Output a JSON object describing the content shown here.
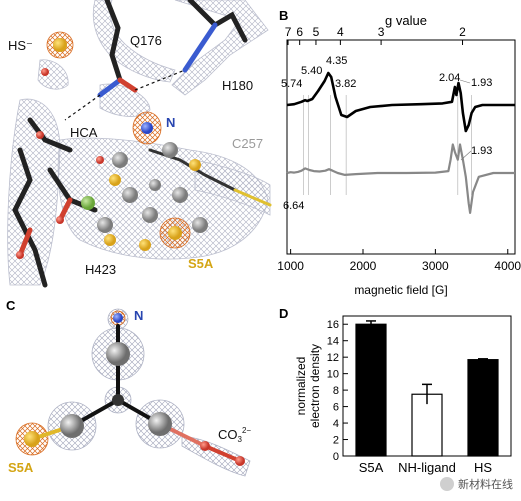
{
  "panels": {
    "a": {
      "letter": "A",
      "labels": {
        "hs": "HS⁻",
        "q176": "Q176",
        "h180": "H180",
        "n": "N",
        "hca": "HCA",
        "c257": "C257",
        "h423": "H423",
        "s5a": "S5A"
      }
    },
    "b": {
      "letter": "B",
      "top_axis_label": "g value",
      "peak_labels": {
        "g574": "5.74",
        "g540": "5.40",
        "g435": "4.35",
        "g382": "3.82",
        "g204": "2.04",
        "g193a": "1.93",
        "g664": "6.64",
        "g193b": "1.93"
      }
    },
    "c": {
      "letter": "C",
      "labels": {
        "n": "N",
        "co3": "CO",
        "co3_sub": "3",
        "co3_sup": "2−",
        "s5a": "S5A"
      }
    },
    "d": {
      "letter": "D"
    }
  },
  "chart_data": [
    {
      "type": "line",
      "panel": "B",
      "xlabel": "magnetic field [G]",
      "x_ticks": [
        1000,
        2000,
        3000,
        4000
      ],
      "xlim": [
        950,
        4100
      ],
      "top_axis": {
        "label": "g value",
        "ticks": [
          "7",
          "6",
          "5",
          "4",
          "3",
          "2"
        ]
      },
      "series": [
        {
          "color": "#000000",
          "x": [
            950,
            1050,
            1150,
            1200,
            1230,
            1300,
            1380,
            1470,
            1520,
            1560,
            1620,
            1700,
            1780,
            1900,
            2100,
            2400,
            2800,
            3100,
            3230,
            3270,
            3290,
            3320,
            3350,
            3380,
            3420,
            3460,
            3500,
            3550,
            3650,
            3800,
            4000,
            4100
          ],
          "y": [
            0.0,
            0.02,
            0.08,
            0.12,
            0.1,
            0.15,
            0.35,
            0.6,
            0.8,
            0.7,
            0.2,
            -0.25,
            -0.3,
            -0.15,
            -0.05,
            0.0,
            0.02,
            0.04,
            0.08,
            0.45,
            0.25,
            0.55,
            0.3,
            -0.2,
            -0.65,
            -0.5,
            -0.2,
            -0.05,
            0.0,
            0.0,
            0.0,
            0.0
          ]
        },
        {
          "color": "#888888",
          "x": [
            950,
            1000,
            1050,
            1100,
            1150,
            1200,
            1260,
            1320,
            1400,
            1480,
            1530,
            1580,
            1650,
            1750,
            1900,
            2200,
            2600,
            3000,
            3180,
            3210,
            3240,
            3270,
            3310,
            3340,
            3380,
            3420,
            3460,
            3480,
            3520,
            3600,
            3800,
            4000,
            4100
          ],
          "y": [
            0.0,
            0.02,
            0.01,
            0.03,
            0.06,
            0.12,
            0.08,
            0.05,
            0.04,
            0.06,
            0.1,
            0.06,
            0.0,
            -0.05,
            -0.03,
            0.0,
            0.0,
            0.01,
            0.05,
            0.35,
            0.75,
            0.55,
            0.35,
            0.75,
            0.35,
            -0.1,
            -0.8,
            -1.05,
            -0.5,
            -0.1,
            0.0,
            0.0,
            0.0
          ]
        }
      ]
    },
    {
      "type": "bar",
      "panel": "D",
      "ylabel": "normalized electron density",
      "ylim": [
        0,
        17
      ],
      "y_ticks": [
        0,
        2,
        4,
        6,
        8,
        10,
        12,
        14,
        16
      ],
      "categories": [
        "S5A",
        "NH-ligand",
        "HS"
      ],
      "values": [
        16.0,
        7.5,
        11.7
      ],
      "errors": [
        0.4,
        1.2,
        0.1
      ],
      "fills": [
        "#000000",
        "#ffffff",
        "#000000"
      ]
    }
  ],
  "watermark": {
    "text": "新材料在线"
  }
}
